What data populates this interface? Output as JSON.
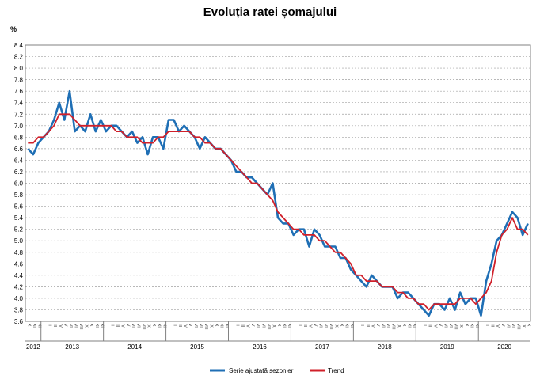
{
  "chart_data": {
    "type": "line",
    "title": "Evoluția ratei șomajului",
    "ylabel": "%",
    "ylim": [
      3.6,
      8.4
    ],
    "ytick_step": 0.2,
    "grid": true,
    "legend_placement": "bottom",
    "x_start": "2012-10",
    "years": [
      "2012",
      "2013",
      "2014",
      "2015",
      "2016",
      "2017",
      "2018",
      "2019",
      "2020"
    ],
    "series": [
      {
        "name": "Serie ajustată sezonier",
        "color": "#1f6fb5",
        "values": [
          6.6,
          6.5,
          6.7,
          6.8,
          6.9,
          7.1,
          7.4,
          7.1,
          7.6,
          6.9,
          7.0,
          6.9,
          7.2,
          6.9,
          7.1,
          6.9,
          7.0,
          7.0,
          6.9,
          6.8,
          6.9,
          6.7,
          6.8,
          6.5,
          6.8,
          6.8,
          6.6,
          7.1,
          7.1,
          6.9,
          7.0,
          6.9,
          6.8,
          6.6,
          6.8,
          6.7,
          6.6,
          6.6,
          6.5,
          6.4,
          6.2,
          6.2,
          6.1,
          6.1,
          6.0,
          5.9,
          5.8,
          6.0,
          5.4,
          5.3,
          5.3,
          5.1,
          5.2,
          5.2,
          4.9,
          5.2,
          5.1,
          4.9,
          4.9,
          4.9,
          4.7,
          4.7,
          4.5,
          4.4,
          4.3,
          4.2,
          4.4,
          4.3,
          4.2,
          4.2,
          4.2,
          4.0,
          4.1,
          4.1,
          4.0,
          3.9,
          3.8,
          3.7,
          3.9,
          3.9,
          3.8,
          4.0,
          3.8,
          4.1,
          3.9,
          4.0,
          4.0,
          3.7,
          4.3,
          4.6,
          5.0,
          5.1,
          5.3,
          5.5,
          5.4,
          5.1,
          5.3
        ]
      },
      {
        "name": "Trend",
        "color": "#d0202a",
        "values": [
          6.7,
          6.7,
          6.8,
          6.8,
          6.9,
          7.0,
          7.2,
          7.2,
          7.2,
          7.1,
          7.0,
          7.0,
          7.0,
          7.0,
          7.0,
          7.0,
          7.0,
          6.9,
          6.9,
          6.8,
          6.8,
          6.8,
          6.7,
          6.7,
          6.7,
          6.8,
          6.8,
          6.9,
          6.9,
          6.9,
          6.9,
          6.9,
          6.8,
          6.8,
          6.7,
          6.7,
          6.6,
          6.6,
          6.5,
          6.4,
          6.3,
          6.2,
          6.1,
          6.0,
          6.0,
          5.9,
          5.8,
          5.7,
          5.5,
          5.4,
          5.3,
          5.2,
          5.2,
          5.1,
          5.1,
          5.1,
          5.0,
          5.0,
          4.9,
          4.8,
          4.8,
          4.7,
          4.6,
          4.4,
          4.4,
          4.3,
          4.3,
          4.3,
          4.2,
          4.2,
          4.2,
          4.1,
          4.1,
          4.0,
          4.0,
          3.9,
          3.9,
          3.8,
          3.9,
          3.9,
          3.9,
          3.9,
          3.9,
          4.0,
          4.0,
          4.0,
          3.9,
          4.0,
          4.1,
          4.3,
          4.8,
          5.1,
          5.2,
          5.4,
          5.2,
          5.2,
          5.1
        ]
      }
    ]
  },
  "legend": {
    "series1": "Serie ajustată sezonier",
    "series2": "Trend"
  }
}
